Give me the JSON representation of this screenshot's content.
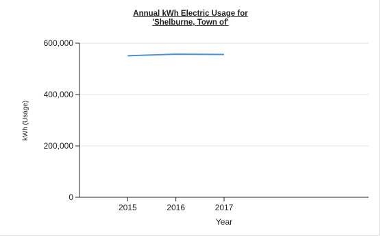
{
  "chart_data": {
    "type": "line",
    "title_line1": "Annual kWh Electric Usage for",
    "title_line2": "'Shelburne, Town of'",
    "xlabel": "Year",
    "ylabel": "kWh (Usage)",
    "categories": [
      "2015",
      "2016",
      "2017"
    ],
    "x_range": [
      2014,
      2020
    ],
    "series": [
      {
        "values": [
          551000,
          557000,
          556000
        ],
        "color": "#4a90d9"
      }
    ],
    "ylim": [
      0,
      600000
    ],
    "yticks": [
      0,
      200000,
      400000,
      600000
    ],
    "ytick_labels": [
      "0",
      "200,000",
      "400,000",
      "600,000"
    ],
    "grid": true
  }
}
